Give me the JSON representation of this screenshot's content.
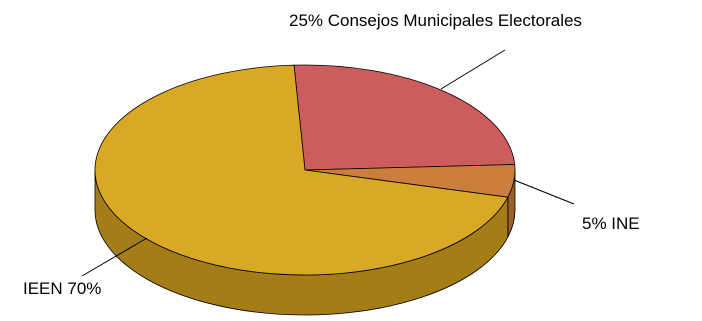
{
  "chart_data": {
    "type": "pie",
    "style": "3d",
    "title": "",
    "slices": [
      {
        "label": "IEEN 70%",
        "value": 70,
        "color": "#D9A824",
        "side_color": "#A47D17"
      },
      {
        "label": "25% Consejos Municipales Electorales",
        "value": 25,
        "color": "#CD5C5C",
        "side_color": "#9A4141"
      },
      {
        "label": "5% INE",
        "value": 5,
        "color": "#CC7F3C",
        "side_color": "#99602C"
      }
    ],
    "legend": "none"
  }
}
